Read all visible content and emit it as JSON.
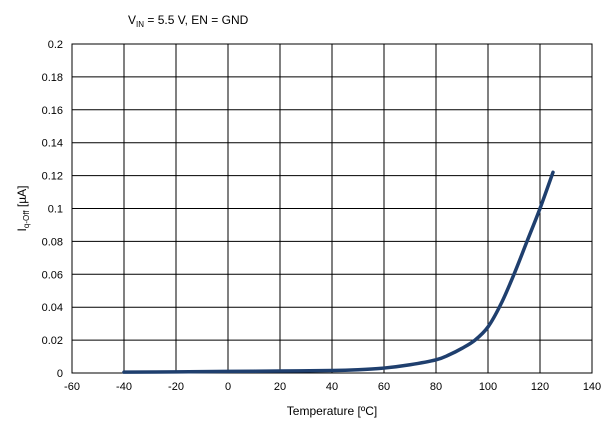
{
  "chart_data": {
    "type": "line",
    "title": "",
    "condition": {
      "v_main": "V",
      "v_sub": "IN",
      "rest": " = 5.5 V, EN = GND"
    },
    "xlabel": "Temperature [ºC]",
    "ylabel": {
      "main": "I",
      "sub": "q-Off",
      "unit": "  [µA]"
    },
    "xlim": [
      -60,
      140
    ],
    "ylim": [
      0,
      0.2
    ],
    "xticks": [
      -60,
      -40,
      -20,
      0,
      20,
      40,
      60,
      80,
      100,
      120,
      140
    ],
    "xtick_labels": [
      "-60",
      "-40",
      "-20",
      "0",
      "20",
      "40",
      "60",
      "80",
      "100",
      "120",
      "140"
    ],
    "yticks": [
      0,
      0.02,
      0.04,
      0.06,
      0.08,
      0.1,
      0.12,
      0.14,
      0.16,
      0.18,
      0.2
    ],
    "ytick_labels": [
      "0",
      "0.02",
      "0.04",
      "0.06",
      "0.08",
      "0.1",
      "0.12",
      "0.14",
      "0.16",
      "0.18",
      "0.2"
    ],
    "grid": true,
    "series": [
      {
        "color": "#1f3f6e",
        "x": [
          -40,
          -20,
          0,
          20,
          40,
          50,
          60,
          70,
          80,
          85,
          90,
          95,
          100,
          105,
          110,
          115,
          120,
          125
        ],
        "y": [
          0.0005,
          0.0007,
          0.001,
          0.0012,
          0.0015,
          0.002,
          0.003,
          0.005,
          0.008,
          0.011,
          0.015,
          0.02,
          0.028,
          0.042,
          0.06,
          0.08,
          0.1,
          0.122
        ]
      }
    ]
  }
}
